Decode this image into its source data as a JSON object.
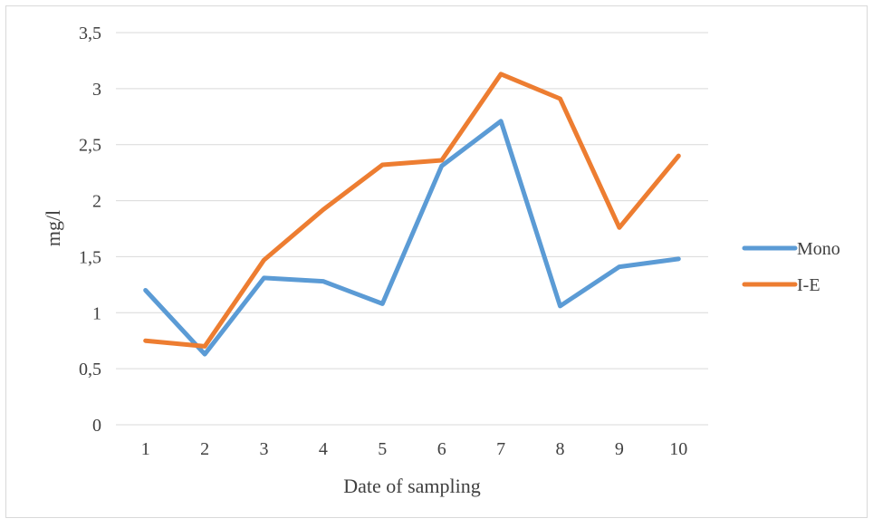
{
  "chart_data": {
    "type": "line",
    "title": "",
    "xlabel": "Date of sampling",
    "ylabel": "mg/l",
    "x": [
      1,
      2,
      3,
      4,
      5,
      6,
      7,
      8,
      9,
      10
    ],
    "ylim": [
      0,
      3.5
    ],
    "yticks": [
      "0",
      "0,5",
      "1",
      "1,5",
      "2",
      "2,5",
      "3",
      "3,5"
    ],
    "grid": true,
    "legend_position": "right",
    "series": [
      {
        "name": "Mono",
        "color": "#5B9BD5",
        "values": [
          1.2,
          0.63,
          1.31,
          1.28,
          1.08,
          2.31,
          2.71,
          1.06,
          1.41,
          1.48
        ]
      },
      {
        "name": "I-E",
        "color": "#ED7D31",
        "values": [
          0.75,
          0.7,
          1.47,
          1.92,
          2.32,
          2.36,
          3.13,
          2.91,
          1.76,
          2.4
        ]
      }
    ]
  }
}
